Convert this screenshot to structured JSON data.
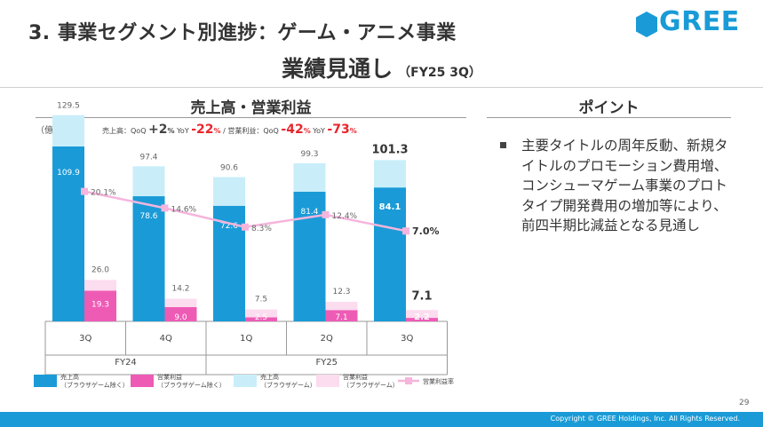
{
  "header": {
    "title": "3. 事業セグメント別進捗：ゲーム・アニメ事業",
    "subtitle": "業績見通し",
    "subtitle_period": "（FY25 3Q）",
    "logo_text": "GREE"
  },
  "left_panel": {
    "heading": "売上高・営業利益",
    "unit": "（億円）",
    "stats": {
      "sales_label": "売上高：",
      "sales_qoq_label": "QoQ",
      "sales_qoq_value": "+2",
      "sales_yoy_label": "YoY",
      "sales_yoy_value": "-22",
      "separator": "/",
      "op_label": "営業利益：",
      "op_qoq_label": "QoQ",
      "op_qoq_value": "-42",
      "op_yoy_label": "YoY",
      "op_yoy_value": "-73",
      "percent": "%"
    }
  },
  "right_panel": {
    "heading": "ポイント",
    "bullet_text": "主要タイトルの周年反動、新規タイトルのプロモーション費用増、コンシューマゲーム事業のプロトタイプ開発費用の増加等により、前四半期比減益となる見通し"
  },
  "chart_data": {
    "type": "bar",
    "categories": [
      "3Q",
      "4Q",
      "1Q",
      "2Q",
      "3Q"
    ],
    "groups": [
      {
        "label": "FY24",
        "categories": [
          "3Q",
          "4Q"
        ]
      },
      {
        "label": "FY25",
        "categories": [
          "1Q",
          "2Q",
          "3Q"
        ]
      }
    ],
    "series": [
      {
        "name": "売上高（ブラウザゲーム除く）",
        "stack": "sales",
        "color": "#1a9bd7",
        "values": [
          109.9,
          78.6,
          72.6,
          81.4,
          84.1
        ]
      },
      {
        "name": "売上高（ブラウザゲーム）",
        "stack": "sales",
        "color": "#c9eefa",
        "values": [
          19.6,
          18.8,
          18.0,
          17.9,
          17.2
        ]
      },
      {
        "name": "営業利益（ブラウザゲーム除く）",
        "stack": "op",
        "color": "#ee5bb5",
        "values": [
          19.3,
          9.0,
          2.5,
          7.1,
          2.2
        ]
      },
      {
        "name": "営業利益（ブラウザゲーム）",
        "stack": "op",
        "color": "#fcdcef",
        "values": [
          6.7,
          5.2,
          5.0,
          5.2,
          4.9
        ]
      },
      {
        "name": "営業利益率",
        "type": "line",
        "color": "#f5b5dc",
        "values": [
          20.1,
          14.6,
          8.3,
          12.4,
          7.0
        ]
      }
    ],
    "sales_totals": [
      "129.5",
      "97.4",
      "90.6",
      "99.3",
      "101.3"
    ],
    "op_totals": [
      "26.0",
      "14.2",
      "7.5",
      "12.3",
      "7.1"
    ],
    "sales_inner_labels": [
      "109.9",
      "78.6",
      "72.6",
      "81.4",
      "84.1"
    ],
    "op_inner_labels": [
      "19.3",
      "9.0",
      "2.5",
      "7.1",
      "2.2"
    ],
    "margin_labels": [
      "20.1%",
      "14.6%",
      "8.3%",
      "12.4%",
      "7.0%"
    ],
    "ylim": [
      0,
      140
    ],
    "grid": false,
    "legend_position": "bottom",
    "legend": [
      {
        "line1": "売上高",
        "line2": "（ブラウザゲーム除く）",
        "color": "#1a9bd7",
        "kind": "box"
      },
      {
        "line1": "営業利益",
        "line2": "（ブラウザゲーム除く）",
        "color": "#ee5bb5",
        "kind": "box"
      },
      {
        "line1": "売上高",
        "line2": "（ブラウザゲーム）",
        "color": "#c9eefa",
        "kind": "box"
      },
      {
        "line1": "営業利益",
        "line2": "（ブラウザゲーム）",
        "color": "#fcdcef",
        "kind": "box"
      },
      {
        "line1": "営業利益率",
        "line2": "",
        "color": "#f5b5dc",
        "kind": "line"
      }
    ]
  },
  "footer": {
    "page_number": "29",
    "copyright": "Copyright © GREE Holdings, Inc. All Rights Reserved."
  }
}
